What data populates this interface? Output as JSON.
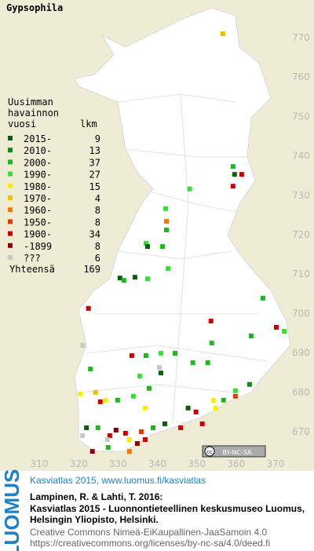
{
  "title": "Gypsophila",
  "legend": {
    "heading": [
      "Uusimman",
      "havainnon",
      "vuosi"
    ],
    "count_heading": "lkm",
    "rows": [
      {
        "label": "2015-",
        "count": 9,
        "color": "#0b5e0b"
      },
      {
        "label": "2010-",
        "count": 13,
        "color": "#138a13"
      },
      {
        "label": "2000-",
        "count": 37,
        "color": "#1db81d"
      },
      {
        "label": "1990-",
        "count": 27,
        "color": "#33e033"
      },
      {
        "label": "1980-",
        "count": 15,
        "color": "#f5f000"
      },
      {
        "label": "1970-",
        "count": 4,
        "color": "#f0c000"
      },
      {
        "label": "1960-",
        "count": 8,
        "color": "#f07800"
      },
      {
        "label": "1950-",
        "count": 8,
        "color": "#e03c00"
      },
      {
        "label": "1900-",
        "count": 34,
        "color": "#cc0000"
      },
      {
        "label": "-1899",
        "count": 8,
        "color": "#8a0000"
      },
      {
        "label": "???",
        "count": 6,
        "color": "#c8c8c8"
      }
    ],
    "total_label": "Yhteensä",
    "total": 169
  },
  "map": {
    "xlim": [
      310,
      370
    ],
    "ylim": [
      670,
      770
    ],
    "xticks": [
      310,
      320,
      330,
      340,
      350,
      360,
      370
    ],
    "yticks": [
      670,
      680,
      690,
      700,
      710,
      720,
      730,
      740,
      750,
      760,
      770
    ],
    "points": [
      {
        "x": 356.6,
        "y": 771.0,
        "cat": 5
      },
      {
        "x": 359.2,
        "y": 737.3,
        "cat": 2
      },
      {
        "x": 359.6,
        "y": 735.3,
        "cat": 0
      },
      {
        "x": 361.4,
        "y": 735.3,
        "cat": 8
      },
      {
        "x": 359.2,
        "y": 732.3,
        "cat": 8
      },
      {
        "x": 348.2,
        "y": 731.6,
        "cat": 3
      },
      {
        "x": 342.1,
        "y": 726.6,
        "cat": 3
      },
      {
        "x": 342.3,
        "y": 723.4,
        "cat": 6
      },
      {
        "x": 342.3,
        "y": 721.2,
        "cat": 2
      },
      {
        "x": 337.1,
        "y": 717.8,
        "cat": 3
      },
      {
        "x": 337.5,
        "y": 717.0,
        "cat": 0
      },
      {
        "x": 341.3,
        "y": 717.0,
        "cat": 2
      },
      {
        "x": 342.7,
        "y": 711.4,
        "cat": 3
      },
      {
        "x": 330.5,
        "y": 709.0,
        "cat": 0
      },
      {
        "x": 331.5,
        "y": 708.4,
        "cat": 2
      },
      {
        "x": 334.3,
        "y": 709.2,
        "cat": 0
      },
      {
        "x": 337.5,
        "y": 708.8,
        "cat": 3
      },
      {
        "x": 322.5,
        "y": 701.3,
        "cat": 8
      },
      {
        "x": 366.8,
        "y": 703.9,
        "cat": 2
      },
      {
        "x": 370.2,
        "y": 696.5,
        "cat": 8
      },
      {
        "x": 372.2,
        "y": 695.5,
        "cat": 3
      },
      {
        "x": 363.8,
        "y": 694.3,
        "cat": 2
      },
      {
        "x": 353.6,
        "y": 698.1,
        "cat": 8
      },
      {
        "x": 353.8,
        "y": 692.5,
        "cat": 2
      },
      {
        "x": 321.0,
        "y": 691.9,
        "cat": 10
      },
      {
        "x": 333.5,
        "y": 689.3,
        "cat": 8
      },
      {
        "x": 337.1,
        "y": 689.3,
        "cat": 2
      },
      {
        "x": 340.9,
        "y": 689.9,
        "cat": 3
      },
      {
        "x": 340.5,
        "y": 686.3,
        "cat": 10
      },
      {
        "x": 344.5,
        "y": 689.9,
        "cat": 2
      },
      {
        "x": 349.0,
        "y": 687.5,
        "cat": 2
      },
      {
        "x": 352.8,
        "y": 687.5,
        "cat": 2
      },
      {
        "x": 335.5,
        "y": 684.1,
        "cat": 3
      },
      {
        "x": 323.0,
        "y": 685.9,
        "cat": 2
      },
      {
        "x": 340.9,
        "y": 684.9,
        "cat": 0
      },
      {
        "x": 320.4,
        "y": 679.6,
        "cat": 4
      },
      {
        "x": 324.3,
        "y": 680.0,
        "cat": 5
      },
      {
        "x": 325.5,
        "y": 677.6,
        "cat": 8
      },
      {
        "x": 326.9,
        "y": 678.0,
        "cat": 4
      },
      {
        "x": 329.9,
        "y": 678.0,
        "cat": 2
      },
      {
        "x": 333.9,
        "y": 679.0,
        "cat": 3
      },
      {
        "x": 337.9,
        "y": 681.0,
        "cat": 2
      },
      {
        "x": 336.9,
        "y": 676.0,
        "cat": 4
      },
      {
        "x": 347.8,
        "y": 676.0,
        "cat": 0
      },
      {
        "x": 349.8,
        "y": 675.0,
        "cat": 8
      },
      {
        "x": 354.2,
        "y": 678.0,
        "cat": 4
      },
      {
        "x": 354.8,
        "y": 676.0,
        "cat": 4
      },
      {
        "x": 356.8,
        "y": 678.0,
        "cat": 2
      },
      {
        "x": 359.8,
        "y": 680.4,
        "cat": 3
      },
      {
        "x": 363.4,
        "y": 682.0,
        "cat": 1
      },
      {
        "x": 322.0,
        "y": 671.0,
        "cat": 0
      },
      {
        "x": 324.9,
        "y": 671.0,
        "cat": 2
      },
      {
        "x": 327.9,
        "y": 669.0,
        "cat": 8
      },
      {
        "x": 329.5,
        "y": 670.4,
        "cat": 9
      },
      {
        "x": 331.9,
        "y": 669.6,
        "cat": 8
      },
      {
        "x": 332.9,
        "y": 668.0,
        "cat": 4
      },
      {
        "x": 334.9,
        "y": 667.0,
        "cat": 9
      },
      {
        "x": 336.9,
        "y": 668.0,
        "cat": 8
      },
      {
        "x": 338.9,
        "y": 671.0,
        "cat": 2
      },
      {
        "x": 341.9,
        "y": 672.0,
        "cat": 0
      },
      {
        "x": 345.9,
        "y": 671.0,
        "cat": 8
      },
      {
        "x": 351.4,
        "y": 672.0,
        "cat": 8
      },
      {
        "x": 323.5,
        "y": 665.0,
        "cat": 9
      },
      {
        "x": 327.5,
        "y": 666.0,
        "cat": 2
      },
      {
        "x": 332.9,
        "y": 665.0,
        "cat": 6
      },
      {
        "x": 321.0,
        "y": 669.0,
        "cat": 10
      },
      {
        "x": 327.3,
        "y": 668.0,
        "cat": 10
      },
      {
        "x": 335.9,
        "y": 670.0,
        "cat": 7
      },
      {
        "x": 359.8,
        "y": 679.0,
        "cat": 7
      }
    ]
  },
  "license_badge": "BY-NC-SA",
  "footer": {
    "logo": "LUOMUS",
    "link": "Kasviatlas 2015, www.luomus.fi/kasviatlas",
    "citation": [
      "Lampinen, R. & Lahti, T. 2016:",
      "Kasviatlas 2015 - Luonnontieteellinen keskusmuseo Luomus,",
      "Helsingin Yliopisto, Helsinki."
    ],
    "license": [
      "Creative Commons Nimeä-EiKaupallinen-JaaSamoin 4.0",
      "https://creativecommons.org/licenses/by-nc-sa/4.0/deed.fi"
    ]
  }
}
